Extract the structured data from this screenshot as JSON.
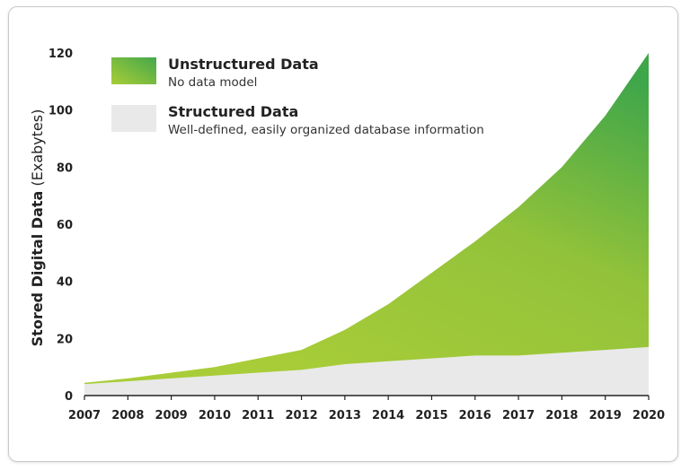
{
  "chart_data": {
    "type": "area",
    "stacked": true,
    "x": [
      2007,
      2008,
      2009,
      2010,
      2011,
      2012,
      2013,
      2014,
      2015,
      2016,
      2017,
      2018,
      2019,
      2020
    ],
    "x_tick_labels": [
      "2007",
      "2008",
      "2009",
      "2010",
      "2011",
      "2012",
      "2013",
      "2014",
      "2015",
      "2016",
      "2017",
      "2018",
      "2019",
      "2020"
    ],
    "series": [
      {
        "name": "Structured Data",
        "description": "Well-defined, easily organized database information",
        "color": "#e9e9e9",
        "values": [
          4,
          5,
          6,
          7,
          8,
          9,
          11,
          12,
          13,
          14,
          14,
          15,
          16,
          17
        ]
      },
      {
        "name": "Unstructured Data",
        "description": "No data model",
        "color_light": "#a8cc3a",
        "color_dark": "#44a84a",
        "values": [
          0.5,
          1,
          2,
          3,
          5,
          7,
          12,
          20,
          30,
          40,
          52,
          65,
          82,
          103
        ]
      }
    ],
    "ylabel_bold": "Stored Digital Data",
    "ylabel_rest": " (Exabytes)",
    "ylim": [
      0,
      120
    ],
    "y_ticks": [
      0,
      20,
      40,
      60,
      80,
      100,
      120
    ],
    "legend": "top-left"
  }
}
